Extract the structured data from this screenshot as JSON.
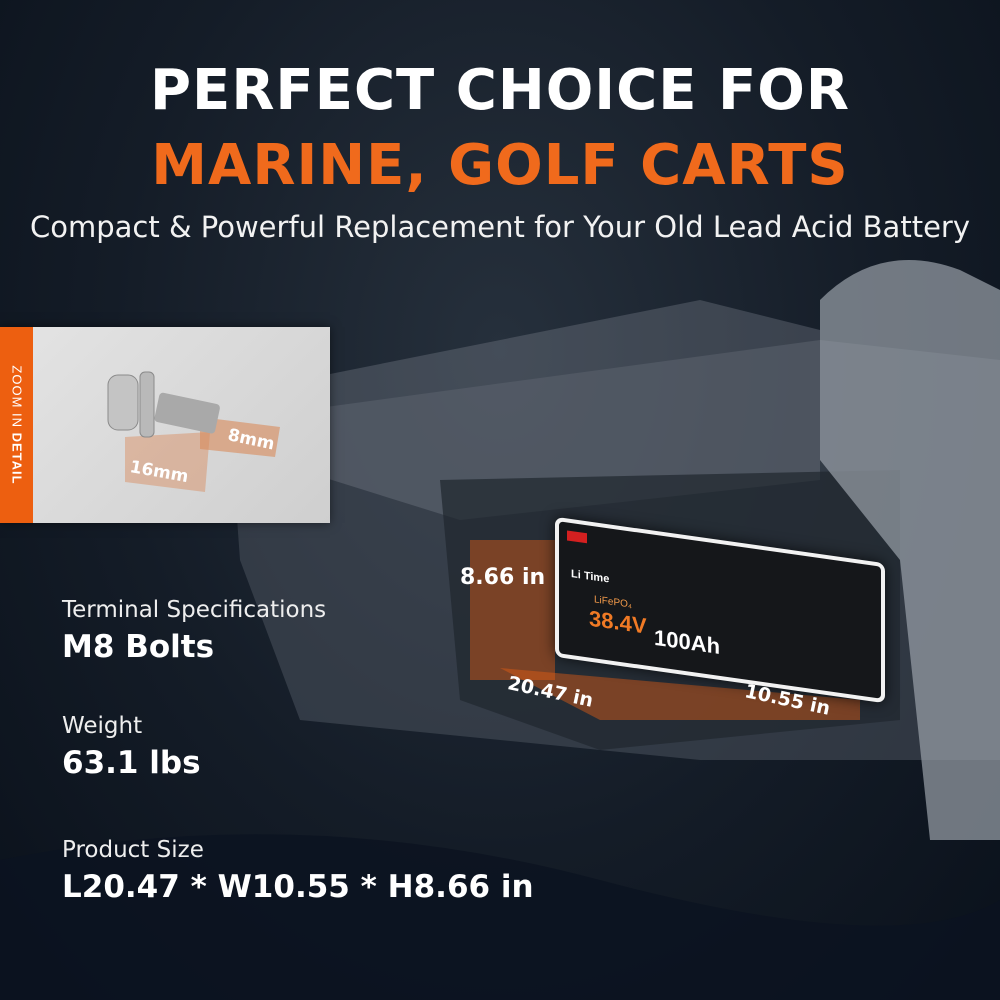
{
  "headline": {
    "line1": "PERFECT CHOICE FOR",
    "line2": "MARINE, GOLF CARTS",
    "subtitle": "Compact & Powerful Replacement for Your Old Lead Acid Battery"
  },
  "zoom_detail": {
    "label_light": "ZOOM IN ",
    "label_bold": "DETAIL",
    "bolt_length": "16mm",
    "bolt_diameter": "8mm"
  },
  "battery": {
    "brand": "Li Time",
    "chemistry": "LiFePO₄",
    "voltage": "38.4V",
    "capacity": "100Ah",
    "height": "8.66 in",
    "length": "20.47 in",
    "width": "10.55 in"
  },
  "specs": [
    {
      "label": "Terminal Specifications",
      "value": "M8 Bolts"
    },
    {
      "label": "Weight",
      "value": "63.1 lbs"
    },
    {
      "label": "Product Size",
      "value": "L20.47 * W10.55 * H8.66 in"
    }
  ],
  "colors": {
    "accent": "#f06a1c",
    "background": "#141c27"
  }
}
